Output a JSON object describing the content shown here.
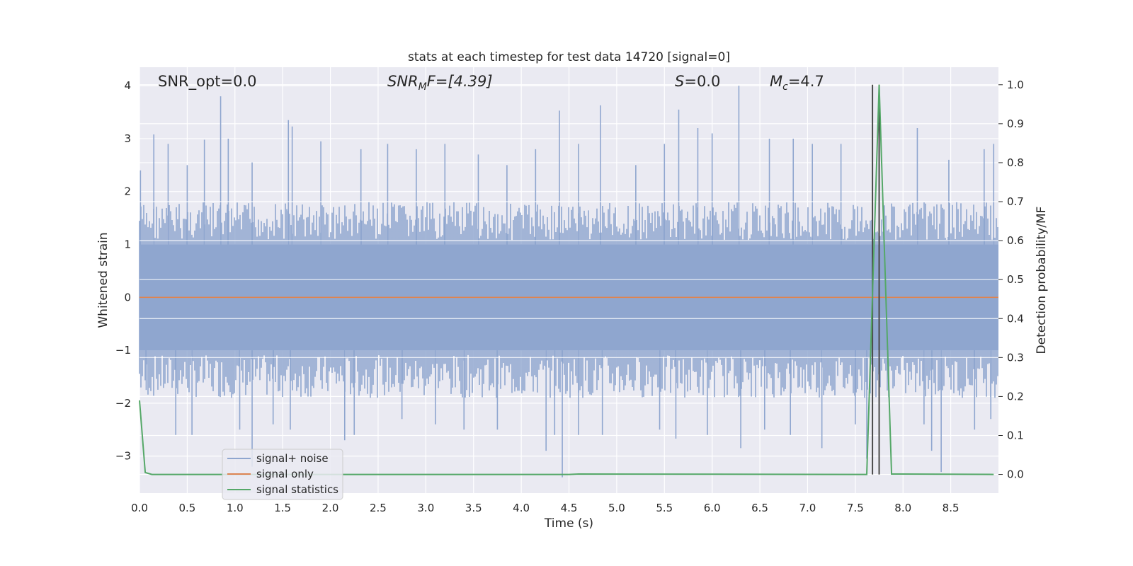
{
  "chart_data": {
    "type": "line",
    "title": "stats at each timestep for test data 14720 [signal=0]",
    "xlabel": "Time (s)",
    "ylabel": "Whitened strain",
    "y2label": "Detection probability/MF",
    "xlim": [
      0.0,
      9.0
    ],
    "ylim": [
      -3.7,
      4.35
    ],
    "y2lim": [
      -0.048,
      1.045
    ],
    "xticks": [
      "0.0",
      "0.5",
      "1.0",
      "1.5",
      "2.0",
      "2.5",
      "3.0",
      "3.5",
      "4.0",
      "4.5",
      "5.0",
      "5.5",
      "6.0",
      "6.5",
      "7.0",
      "7.5",
      "8.0",
      "8.5"
    ],
    "yticks": [
      "−3",
      "−2",
      "−1",
      "0",
      "1",
      "2",
      "3",
      "4"
    ],
    "y2ticks": [
      "0.0",
      "0.1",
      "0.2",
      "0.3",
      "0.4",
      "0.5",
      "0.6",
      "0.7",
      "0.8",
      "0.9",
      "1.0"
    ],
    "grid": true,
    "legend_position": "lower-left",
    "annotations": {
      "snr_opt": "SNR_opt=0.0",
      "snr_mf_base": "SNR",
      "snr_mf_sub_1": "M",
      "snr_mf_rest": "F=[4.39]",
      "s_base": "S",
      "s_rest": "=0.0",
      "mc_base": "M",
      "mc_sub": "c",
      "mc_rest": "=4.7"
    },
    "series": [
      {
        "name": "signal+ noise",
        "color": "#8fa6cf",
        "noise_envelope_upper": 1.8,
        "noise_envelope_lower": -1.9,
        "peaks": [
          [
            0.01,
            2.4
          ],
          [
            0.15,
            3.08
          ],
          [
            0.3,
            2.9
          ],
          [
            0.5,
            2.5
          ],
          [
            0.68,
            2.98
          ],
          [
            0.85,
            3.8
          ],
          [
            0.93,
            3.0
          ],
          [
            1.18,
            2.55
          ],
          [
            1.56,
            3.35
          ],
          [
            1.6,
            3.23
          ],
          [
            1.9,
            2.95
          ],
          [
            2.32,
            2.8
          ],
          [
            2.6,
            2.9
          ],
          [
            2.9,
            2.8
          ],
          [
            3.2,
            2.9
          ],
          [
            3.55,
            2.7
          ],
          [
            3.85,
            2.5
          ],
          [
            4.15,
            2.8
          ],
          [
            4.4,
            3.53
          ],
          [
            4.6,
            2.9
          ],
          [
            4.83,
            3.63
          ],
          [
            5.2,
            2.5
          ],
          [
            5.5,
            2.9
          ],
          [
            5.65,
            3.55
          ],
          [
            5.85,
            3.2
          ],
          [
            6.0,
            3.1
          ],
          [
            6.28,
            4.0
          ],
          [
            6.6,
            3.0
          ],
          [
            6.85,
            3.0
          ],
          [
            7.05,
            2.9
          ],
          [
            7.35,
            2.9
          ],
          [
            8.15,
            3.2
          ],
          [
            8.48,
            2.6
          ],
          [
            8.85,
            2.8
          ],
          [
            8.95,
            2.9
          ],
          [
            0.07,
            -1.75
          ],
          [
            0.38,
            -2.6
          ],
          [
            0.55,
            -2.6
          ],
          [
            1.05,
            -2.5
          ],
          [
            1.18,
            -3.2
          ],
          [
            1.4,
            -2.4
          ],
          [
            1.58,
            -2.5
          ],
          [
            2.15,
            -2.7
          ],
          [
            2.25,
            -2.6
          ],
          [
            2.75,
            -2.3
          ],
          [
            3.1,
            -2.4
          ],
          [
            3.4,
            -2.5
          ],
          [
            3.75,
            -2.5
          ],
          [
            4.26,
            -2.9
          ],
          [
            4.35,
            -2.6
          ],
          [
            4.43,
            -3.4
          ],
          [
            4.6,
            -2.6
          ],
          [
            4.85,
            -2.6
          ],
          [
            5.45,
            -2.5
          ],
          [
            5.62,
            -2.67
          ],
          [
            5.95,
            -2.6
          ],
          [
            6.3,
            -2.85
          ],
          [
            6.55,
            -2.5
          ],
          [
            6.82,
            -2.6
          ],
          [
            7.15,
            -2.85
          ],
          [
            7.5,
            -2.4
          ],
          [
            7.62,
            -3.05
          ],
          [
            8.22,
            -2.4
          ],
          [
            8.3,
            -2.9
          ],
          [
            8.4,
            -3.3
          ],
          [
            8.75,
            -2.5
          ],
          [
            8.92,
            -2.3
          ]
        ]
      },
      {
        "name": "signal only",
        "color": "#dd8452",
        "x": [
          0.0,
          9.0
        ],
        "y": [
          0.0,
          0.0
        ]
      },
      {
        "name": "signal statistics",
        "color": "#55a868",
        "axis": "right",
        "x": [
          0.0,
          0.06,
          0.13,
          4.5,
          4.6,
          7.62,
          7.75,
          7.88,
          8.95
        ],
        "y": [
          0.19,
          0.005,
          0.0,
          0.0,
          0.001,
          0.0,
          1.0,
          0.001,
          0.0
        ]
      }
    ],
    "vertical_markers": {
      "color": "#4a4a4a",
      "x": [
        7.68,
        7.75
      ]
    }
  }
}
